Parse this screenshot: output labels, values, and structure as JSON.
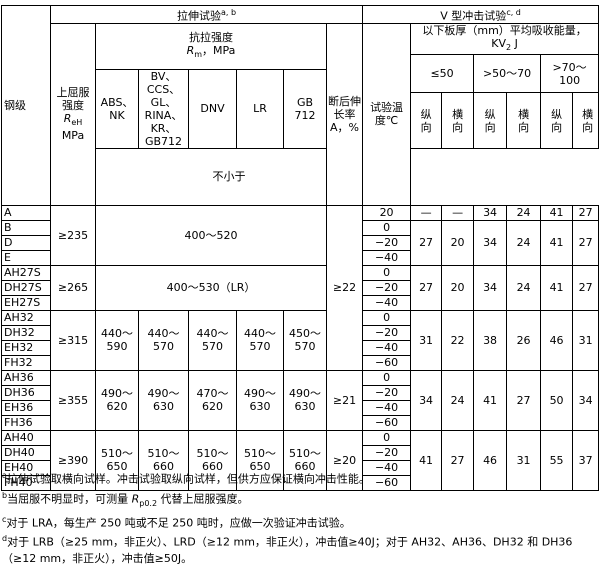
{
  "table": {
    "header": {
      "grade": "钢级",
      "tensile_test": {
        "label": "拉伸试验",
        "note": "a, b"
      },
      "impact_test": {
        "label": "V 型冲击试验",
        "note": "c, d"
      },
      "yield": {
        "label": "上屈服强度",
        "symbol": "R",
        "sub": "eH",
        "unit": "MPa"
      },
      "tensile_strength": {
        "label": "抗拉强度",
        "symbol": "R",
        "sub": "m",
        "unit": "，MPa"
      },
      "societies": [
        "ABS、NK",
        "BV、CCS、GL、RINA、KR、GB712",
        "DNV",
        "LR",
        "GB 712"
      ],
      "elongation": {
        "label": "断后伸长率",
        "unit": "A，%"
      },
      "test_temp": {
        "label": "试验温度",
        "unit": "℃"
      },
      "energy": {
        "label": "以下板厚（mm）平均吸收能量，",
        "symbol": "KV",
        "sub": "2",
        "unit": "J"
      },
      "thickness": [
        "≤50",
        ">50～70",
        ">70～100"
      ],
      "directions": [
        "纵向",
        "横向",
        "纵向",
        "横向",
        "纵向",
        "横向"
      ],
      "minimum": "不小于"
    },
    "bands": [
      {
        "elongation": "≥22",
        "groups": [
          {
            "yield": "≥235",
            "tensile": [
              "400～520"
            ],
            "blocks": [
              {
                "rows": [
                  {
                    "grade": "A",
                    "temp": "20"
                  }
                ],
                "impact": [
                  "—",
                  "—",
                  "34",
                  "24",
                  "41",
                  "27"
                ]
              },
              {
                "rows": [
                  {
                    "grade": "B",
                    "temp": "0"
                  },
                  {
                    "grade": "D",
                    "temp": "−20"
                  },
                  {
                    "grade": "E",
                    "temp": "−40"
                  }
                ],
                "impact": [
                  "27",
                  "20",
                  "34",
                  "24",
                  "41",
                  "27"
                ]
              }
            ]
          },
          {
            "yield": "≥265",
            "tensile": [
              "400～530（LR）"
            ],
            "blocks": [
              {
                "rows": [
                  {
                    "grade": "AH27S",
                    "temp": "0"
                  },
                  {
                    "grade": "DH27S",
                    "temp": "−20"
                  },
                  {
                    "grade": "EH27S",
                    "temp": "−40"
                  }
                ],
                "impact": [
                  "27",
                  "20",
                  "34",
                  "24",
                  "41",
                  "27"
                ]
              }
            ]
          },
          {
            "yield": "≥315",
            "tensile": [
              "440～590",
              "440～570",
              "440～570",
              "440～570",
              "450～570"
            ],
            "blocks": [
              {
                "rows": [
                  {
                    "grade": "AH32",
                    "temp": "0"
                  },
                  {
                    "grade": "DH32",
                    "temp": "−20"
                  },
                  {
                    "grade": "EH32",
                    "temp": "−40"
                  },
                  {
                    "grade": "FH32",
                    "temp": "−60"
                  }
                ],
                "impact": [
                  "31",
                  "22",
                  "38",
                  "26",
                  "46",
                  "31"
                ]
              }
            ]
          }
        ]
      },
      {
        "elongation": "≥21",
        "groups": [
          {
            "yield": "≥355",
            "tensile": [
              "490～620",
              "490～630",
              "470～620",
              "490～630",
              "490～630"
            ],
            "blocks": [
              {
                "rows": [
                  {
                    "grade": "AH36",
                    "temp": "0"
                  },
                  {
                    "grade": "DH36",
                    "temp": "−20"
                  },
                  {
                    "grade": "EH36",
                    "temp": "−40"
                  },
                  {
                    "grade": "FH36",
                    "temp": "−60"
                  }
                ],
                "impact": [
                  "34",
                  "24",
                  "41",
                  "27",
                  "50",
                  "34"
                ]
              }
            ]
          }
        ]
      },
      {
        "elongation": "≥20",
        "groups": [
          {
            "yield": "≥390",
            "tensile": [
              "510～650",
              "510～660",
              "510～660",
              "510～650",
              "510～660"
            ],
            "blocks": [
              {
                "rows": [
                  {
                    "grade": "AH40",
                    "temp": "0"
                  },
                  {
                    "grade": "DH40",
                    "temp": "−20"
                  },
                  {
                    "grade": "EH40",
                    "temp": "−40"
                  },
                  {
                    "grade": "FH40",
                    "temp": "−60"
                  }
                ],
                "impact": [
                  "41",
                  "27",
                  "46",
                  "31",
                  "55",
                  "37"
                ]
              }
            ]
          }
        ]
      }
    ]
  },
  "footnotes": [
    {
      "mark": "a",
      "text": "拉伸试验取横向试样。冲击试验取纵向试样，但供方应保证横向冲击性能。"
    },
    {
      "mark": "b",
      "text": "当屈服不明显时，可测量 ",
      "symbol": "R",
      "sub": "p0.2",
      "text_after": " 代替上屈服强度。"
    },
    {
      "mark": "c",
      "text": "对于 LRA，每生产 250 吨或不足 250 吨时，应做一次验证冲击试验。"
    },
    {
      "mark": "d",
      "text": "对于 LRB（≥25 mm，非正火）、LRD（≥12 mm，非正火），冲击值≥40J；对于 AH32、AH36、DH32 和 DH36（≥12 mm，非正火），冲击值≥50J。"
    }
  ]
}
